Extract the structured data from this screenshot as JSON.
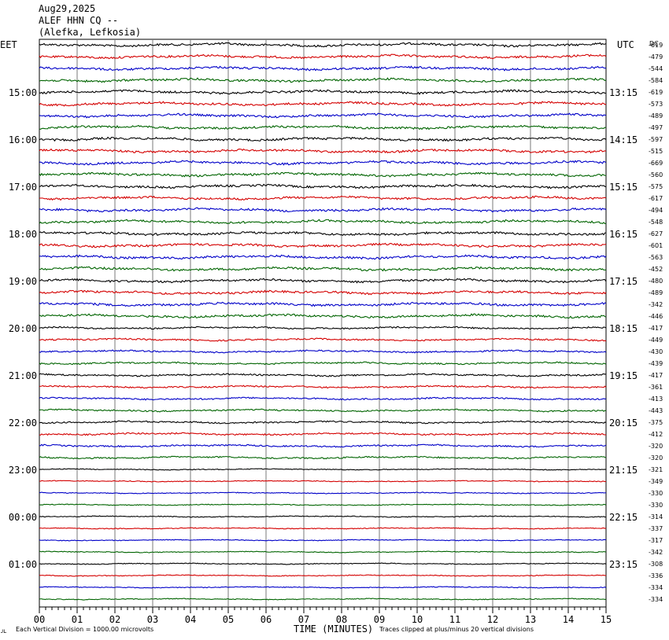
{
  "header": {
    "date": "Aug29,2025",
    "station": "ALEF HHN CQ --",
    "location": "(Alefka, Lefkosia)"
  },
  "footer": {
    "scale_note": "Each Vertical Division = 1000.00 microvolts",
    "clip_note": "Traces clipped at plus/minus 20 vertical divisions",
    "corner_mark": "ᴊʟ"
  },
  "chart_data": {
    "type": "line",
    "title": "",
    "xlabel": "TIME (MINUTES)",
    "left_axis_label": "EET",
    "right_axis_label": "UTC",
    "dc_label": "DC",
    "x_ticks": [
      "00",
      "01",
      "02",
      "03",
      "04",
      "05",
      "06",
      "07",
      "08",
      "09",
      "10",
      "11",
      "12",
      "13",
      "14",
      "15"
    ],
    "xlim": [
      0,
      15
    ],
    "grid": true,
    "left_time_labels": [
      "15:00",
      "16:00",
      "17:00",
      "18:00",
      "19:00",
      "20:00",
      "21:00",
      "22:00",
      "23:00",
      "00:00",
      "01:00"
    ],
    "right_time_labels": [
      "13:15",
      "14:15",
      "15:15",
      "16:15",
      "17:15",
      "18:15",
      "19:15",
      "20:15",
      "21:15",
      "22:15",
      "23:15"
    ],
    "trace_colors": [
      "#000000",
      "#d40000",
      "#0000c8",
      "#006400"
    ],
    "dc_offsets": [
      "-619",
      "-479",
      "-544",
      "-584",
      "-619",
      "-573",
      "-489",
      "-497",
      "-597",
      "-515",
      "-669",
      "-560",
      "-575",
      "-617",
      "-494",
      "-548",
      "-627",
      "-601",
      "-563",
      "-452",
      "-480",
      "-489",
      "-342",
      "-446",
      "-417",
      "-449",
      "-430",
      "-439",
      "-417",
      "-361",
      "-413",
      "-443",
      "-375",
      "-412",
      "-320",
      "-320",
      "-321",
      "-349",
      "-330",
      "-330",
      "-314",
      "-337",
      "-317",
      "-342",
      "-308",
      "-336",
      "-334",
      "-334"
    ]
  }
}
